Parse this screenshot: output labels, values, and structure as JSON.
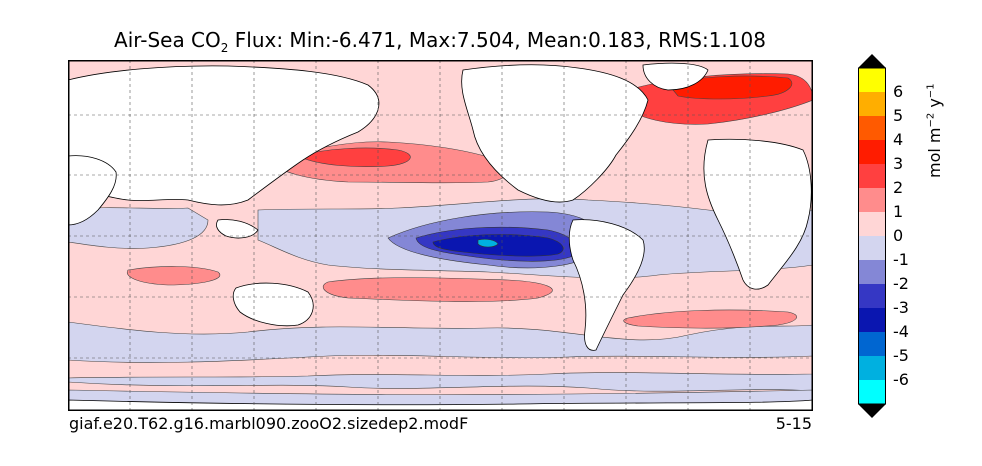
{
  "title": {
    "prefix": "Air-Sea CO",
    "subscript": "2",
    "stats": "Flux: Min:-6.471, Max:7.504, Mean:0.183, RMS:1.108"
  },
  "footer": {
    "case_name": "giaf.e20.T62.g16.marbl090.zooO2.sizedep2.modF",
    "period": "5-15"
  },
  "colorbar": {
    "unit_main": "mol m",
    "unit_exp1": "−2",
    "unit_mid": " y",
    "unit_exp2": "−1",
    "ticks": [
      "6",
      "5",
      "4",
      "3",
      "2",
      "1",
      "0",
      "-1",
      "-2",
      "-3",
      "-4",
      "-5",
      "-6"
    ],
    "colors": [
      "#ffff00",
      "#ffae00",
      "#ff5a00",
      "#ff1c00",
      "#ff4040",
      "#ff8c8c",
      "#ffd6d6",
      "#d3d5ef",
      "#8487d6",
      "#3537c4",
      "#0a16b0",
      "#0066d1",
      "#00b0e0",
      "#00ffff"
    ],
    "over_color": "#000000",
    "under_color": "#000000"
  },
  "map": {
    "ocean_background": "#ffd6d6",
    "land_color": "#ffffff",
    "gridlines": "dashed"
  }
}
